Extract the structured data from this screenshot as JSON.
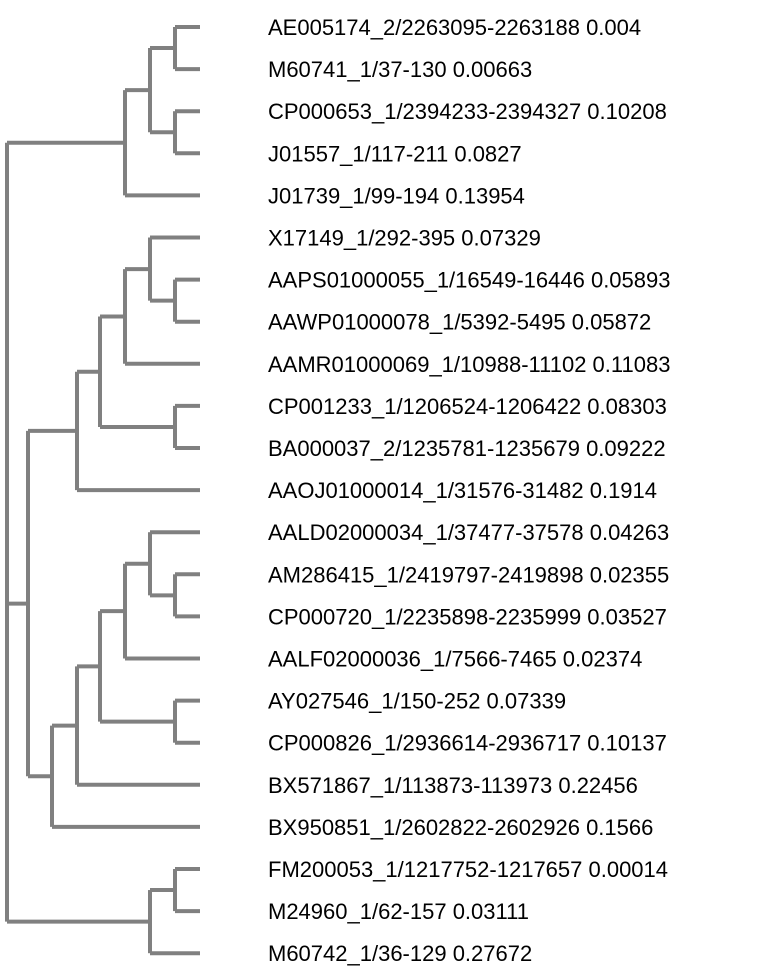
{
  "tree": {
    "leaves": [
      "AE005174_2/2263095-2263188 0.004",
      "M60741_1/37-130 0.00663",
      "CP000653_1/2394233-2394327 0.10208",
      "J01557_1/117-211 0.0827",
      "J01739_1/99-194 0.13954",
      "X17149_1/292-395 0.07329",
      "AAPS01000055_1/16549-16446 0.05893",
      "AAWP01000078_1/5392-5495 0.05872",
      "AAMR01000069_1/10988-11102 0.11083",
      "CP001233_1/1206524-1206422 0.08303",
      "BA000037_2/1235781-1235679 0.09222",
      "AAOJ01000014_1/31576-31482 0.1914",
      "AALD02000034_1/37477-37578 0.04263",
      "AM286415_1/2419797-2419898 0.02355",
      "CP000720_1/2235898-2235999 0.03527",
      "AALF02000036_1/7566-7465 0.02374",
      "AY027546_1/150-252 0.07339",
      "CP000826_1/2936614-2936717 0.10137",
      "BX571867_1/113873-113973 0.22456",
      "BX950851_1/2602822-2602926 0.1566",
      "FM200053_1/1217752-1217657 0.00014",
      "M24960_1/62-157 0.03111",
      "M60742_1/36-129 0.27672"
    ],
    "branch_color": "#808080",
    "label_color": "#000000"
  }
}
